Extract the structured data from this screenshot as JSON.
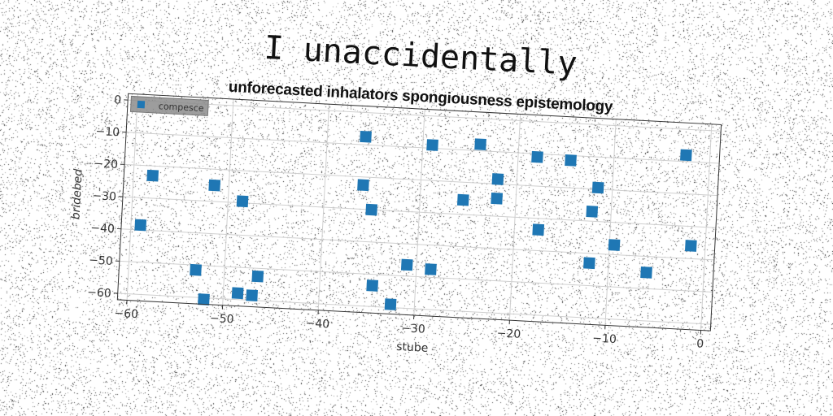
{
  "chart_data": {
    "type": "scatter",
    "title": "I unaccidentally",
    "subtitle": "unforecasted inhalators spongiousness epistemology",
    "xlabel": "stube",
    "ylabel": "bridebed",
    "xlim": [
      -61,
      1
    ],
    "ylim": [
      -62,
      2
    ],
    "xticks": [
      -60,
      -50,
      -40,
      -30,
      -20,
      -10,
      0
    ],
    "yticks": [
      0,
      -10,
      -20,
      -30,
      -40,
      -50,
      -60
    ],
    "grid": true,
    "legend": "top-left",
    "marker": "square",
    "series": [
      {
        "name": "compesce",
        "color": "#1f77b4",
        "points": [
          [
            -58,
            -23
          ],
          [
            -59,
            -38.5
          ],
          [
            -51.5,
            -25
          ],
          [
            -48.5,
            -29.5
          ],
          [
            -53,
            -51.5
          ],
          [
            -52,
            -60.5
          ],
          [
            -48.5,
            -58
          ],
          [
            -47,
            -58.5
          ],
          [
            -46.5,
            -52.5
          ],
          [
            -36,
            -22.5
          ],
          [
            -35,
            -30
          ],
          [
            -36,
            -7.5
          ],
          [
            -34.5,
            -53.5
          ],
          [
            -32.5,
            -59
          ],
          [
            -31,
            -46.5
          ],
          [
            -29,
            -9
          ],
          [
            -28.5,
            -47.5
          ],
          [
            -24,
            -8
          ],
          [
            -25.5,
            -25.5
          ],
          [
            -22,
            -18.5
          ],
          [
            -22,
            -24.5
          ],
          [
            -18,
            -11
          ],
          [
            -17.5,
            -33.5
          ],
          [
            -14.5,
            -11.5
          ],
          [
            -11.5,
            -19.5
          ],
          [
            -12,
            -27
          ],
          [
            -12,
            -43
          ],
          [
            -9.5,
            -37
          ],
          [
            -6,
            -45
          ],
          [
            -2.5,
            -8
          ],
          [
            -1.5,
            -36
          ]
        ]
      }
    ]
  }
}
